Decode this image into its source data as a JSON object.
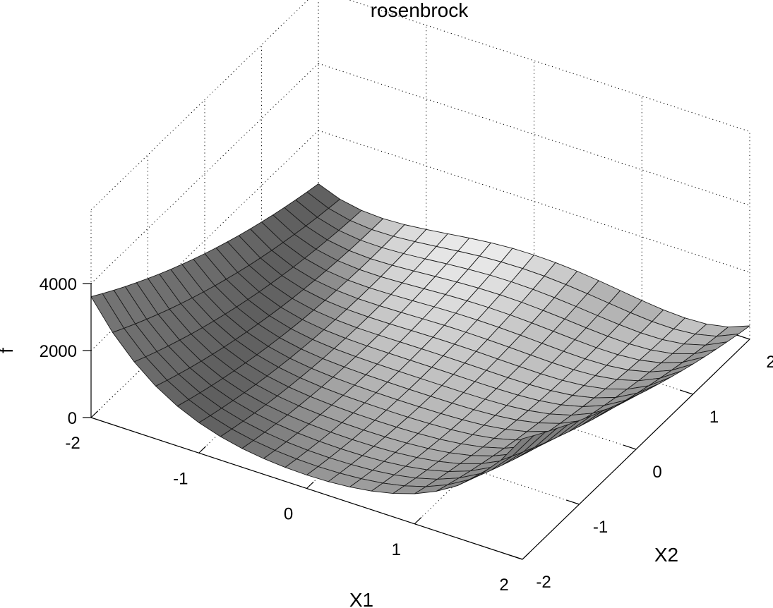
{
  "chart_data": {
    "type": "surface",
    "title": "rosenbrock",
    "xlabel": "X1",
    "ylabel": "X2",
    "zlabel": "f",
    "function": "f(X1, X2) = 100*(X2 - X1^2)^2 + (1 - X1)^2",
    "x_range": [
      -2,
      2
    ],
    "y_range": [
      -2,
      2
    ],
    "z_range": [
      0,
      4000
    ],
    "mesh_steps": 20,
    "x_ticks": [
      "-2",
      "-1",
      "0",
      "1",
      "2"
    ],
    "y_ticks": [
      "-2",
      "-1",
      "0",
      "1",
      "2"
    ],
    "z_ticks": [
      "0",
      "2000",
      "4000"
    ],
    "grid": true,
    "colormap": "gray",
    "surface_color": "#c8c8c8",
    "edge_color": "#1a1a1a",
    "grid_color": "#000000"
  }
}
